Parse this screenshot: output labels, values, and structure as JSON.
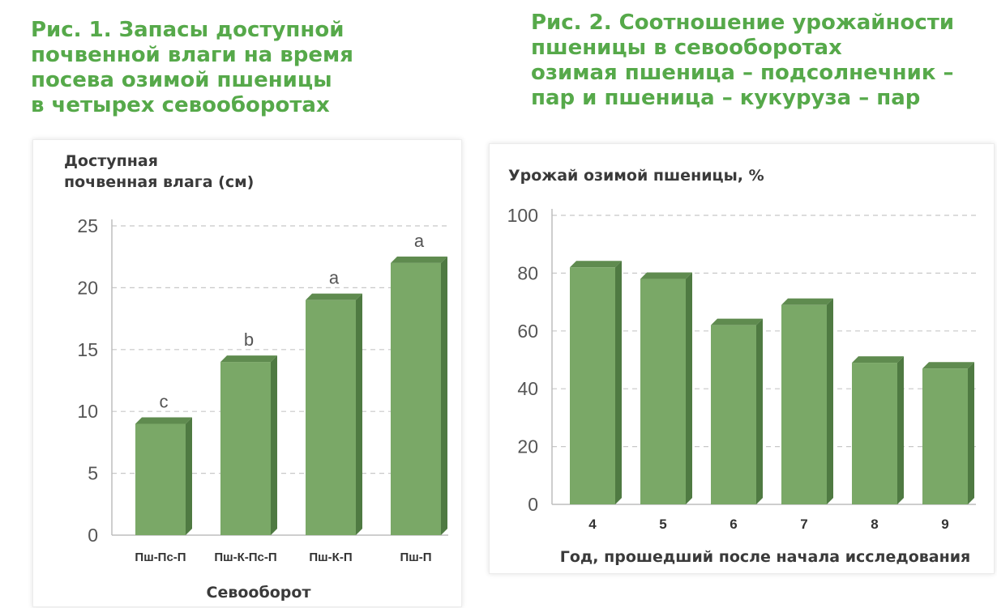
{
  "figure1": {
    "title_lines": [
      "Рис. 1. Запасы доступной",
      "почвенной влаги на время",
      "посева озимой пшеницы",
      "в четырех севооборотах"
    ]
  },
  "figure2": {
    "title_lines": [
      "Рис. 2. Соотношение урожайности",
      "пшеницы в севооборотах",
      "озимая пшеница – подсолнечник –",
      "пар и пшеница – кукуруза – пар"
    ]
  },
  "colors": {
    "title": "#56a94a",
    "bar_face": "#7aa867",
    "bar_top": "#5f8b4f",
    "bar_side": "#4f7a42",
    "grid": "#c8c8c8",
    "axis_text": "#555555"
  },
  "chart_data": [
    {
      "type": "bar",
      "ylabel_lines": [
        "Доступная",
        "почвенная влага (см)"
      ],
      "xlabel": "Севооборот",
      "categories": [
        "Пш-Пс-П",
        "Пш-К-Пс-П",
        "Пш-К-П",
        "Пш-П"
      ],
      "values": [
        9,
        14,
        19,
        22
      ],
      "annotations": [
        "c",
        "b",
        "a",
        "a"
      ],
      "ylim": [
        0,
        25
      ],
      "yticks": [
        0,
        5,
        10,
        15,
        20,
        25
      ],
      "grid": true
    },
    {
      "type": "bar",
      "ylabel": "Урожай озимой пшеницы, %",
      "xlabel": "Год, прошедший после начала исследования",
      "categories": [
        "4",
        "5",
        "6",
        "7",
        "8",
        "9"
      ],
      "values": [
        82,
        78,
        62,
        69,
        49,
        47
      ],
      "ylim": [
        0,
        100
      ],
      "yticks": [
        0,
        20,
        40,
        60,
        80,
        100
      ],
      "grid": true
    }
  ]
}
